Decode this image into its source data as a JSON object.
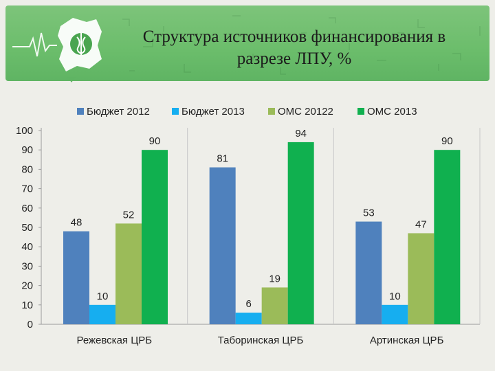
{
  "header": {
    "title_line1": "Структура источников финансирования в",
    "title_line2": "разрезе ЛПУ, %"
  },
  "colors": {
    "header_green": "#6bbd6b",
    "logo_map": "#ffffff",
    "emblem": "#4aa550"
  },
  "chart_data": {
    "type": "bar",
    "title": "",
    "xlabel": "",
    "ylabel": "",
    "ylim": [
      0,
      100
    ],
    "yticks": [
      0,
      10,
      20,
      30,
      40,
      50,
      60,
      70,
      80,
      90,
      100
    ],
    "grid": "vertical separators between categories",
    "legend_position": "top",
    "categories": [
      "Режевская ЦРБ",
      "Таборинская ЦРБ",
      "Артинская ЦРБ"
    ],
    "series": [
      {
        "name": "Бюджет 2012",
        "color": "#4f81bd",
        "values": [
          48,
          81,
          53
        ]
      },
      {
        "name": "Бюджет 2013",
        "color": "#16aef0",
        "values": [
          10,
          6,
          10
        ]
      },
      {
        "name": "ОМС 20122",
        "color": "#9bbb59",
        "values": [
          52,
          19,
          47
        ]
      },
      {
        "name": "ОМС 2013",
        "color": "#10b04f",
        "values": [
          90,
          94,
          90
        ]
      }
    ]
  }
}
